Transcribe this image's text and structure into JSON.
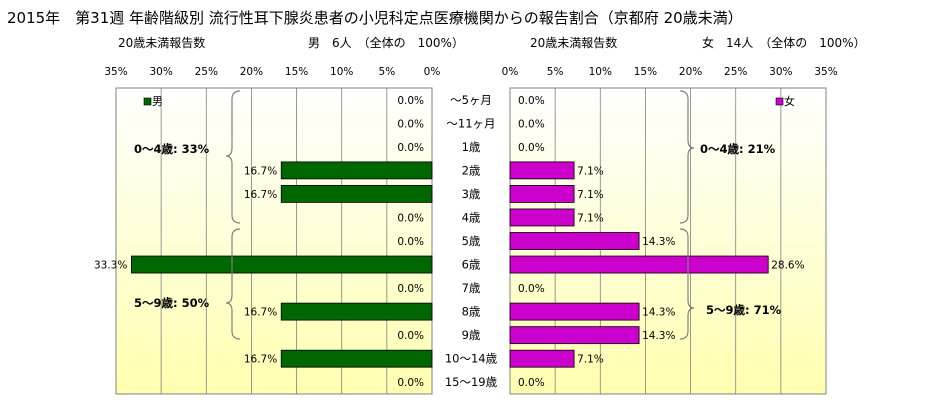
{
  "title": "2015年　第31週 年齢階級別 流行性耳下腺炎患者の小児科定点医療機関からの報告割合（京都府 20歳未満）",
  "left_header": {
    "label": "20歳未満報告数",
    "summary": "男　6人　（全体の　100%）"
  },
  "right_header": {
    "label": "20歳未満報告数",
    "summary": "女　14人　（全体の　100%）"
  },
  "colors": {
    "male": "#006600",
    "female": "#cc00cc",
    "grid": "#808080",
    "bg_top": "#ffffff",
    "bg_bottom": "#ffffb0"
  },
  "chart_data": [
    {
      "type": "bar",
      "orientation": "horizontal",
      "direction": "reversed",
      "series": [
        {
          "name": "男",
          "values": [
            0.0,
            0.0,
            0.0,
            16.7,
            16.7,
            0.0,
            0.0,
            33.3,
            0.0,
            16.7,
            0.0,
            16.7,
            0.0
          ]
        }
      ],
      "categories": [
        "～5ヶ月",
        "～11ヶ月",
        "1歳",
        "2歳",
        "3歳",
        "4歳",
        "5歳",
        "6歳",
        "7歳",
        "8歳",
        "9歳",
        "10～14歳",
        "15～19歳"
      ],
      "value_labels": [
        "0.0%",
        "0.0%",
        "0.0%",
        "16.7%",
        "16.7%",
        "0.0%",
        "0.0%",
        "33.3%",
        "0.0%",
        "16.7%",
        "0.0%",
        "16.7%",
        "0.0%"
      ],
      "xlim": [
        0,
        35
      ],
      "xticks": [
        "35%",
        "30%",
        "25%",
        "20%",
        "15%",
        "10%",
        "5%",
        "0%"
      ],
      "legend": "男",
      "legend_position": "top-left",
      "group_labels": [
        "0～4歳: 33%",
        "5～9歳: 50%"
      ],
      "grid": true
    },
    {
      "type": "bar",
      "orientation": "horizontal",
      "series": [
        {
          "name": "女",
          "values": [
            0.0,
            0.0,
            0.0,
            7.1,
            7.1,
            7.1,
            14.3,
            28.6,
            0.0,
            14.3,
            14.3,
            7.1,
            0.0
          ]
        }
      ],
      "categories": [
        "～5ヶ月",
        "～11ヶ月",
        "1歳",
        "2歳",
        "3歳",
        "4歳",
        "5歳",
        "6歳",
        "7歳",
        "8歳",
        "9歳",
        "10～14歳",
        "15～19歳"
      ],
      "value_labels": [
        "0.0%",
        "0.0%",
        "0.0%",
        "7.1%",
        "7.1%",
        "7.1%",
        "14.3%",
        "28.6%",
        "0.0%",
        "14.3%",
        "14.3%",
        "7.1%",
        "0.0%"
      ],
      "xlim": [
        0,
        35
      ],
      "xticks": [
        "0%",
        "5%",
        "10%",
        "15%",
        "20%",
        "25%",
        "30%",
        "35%"
      ],
      "legend": "女",
      "legend_position": "top-right",
      "group_labels": [
        "0～4歳: 21%",
        "5～9歳: 71%"
      ],
      "grid": true
    }
  ]
}
